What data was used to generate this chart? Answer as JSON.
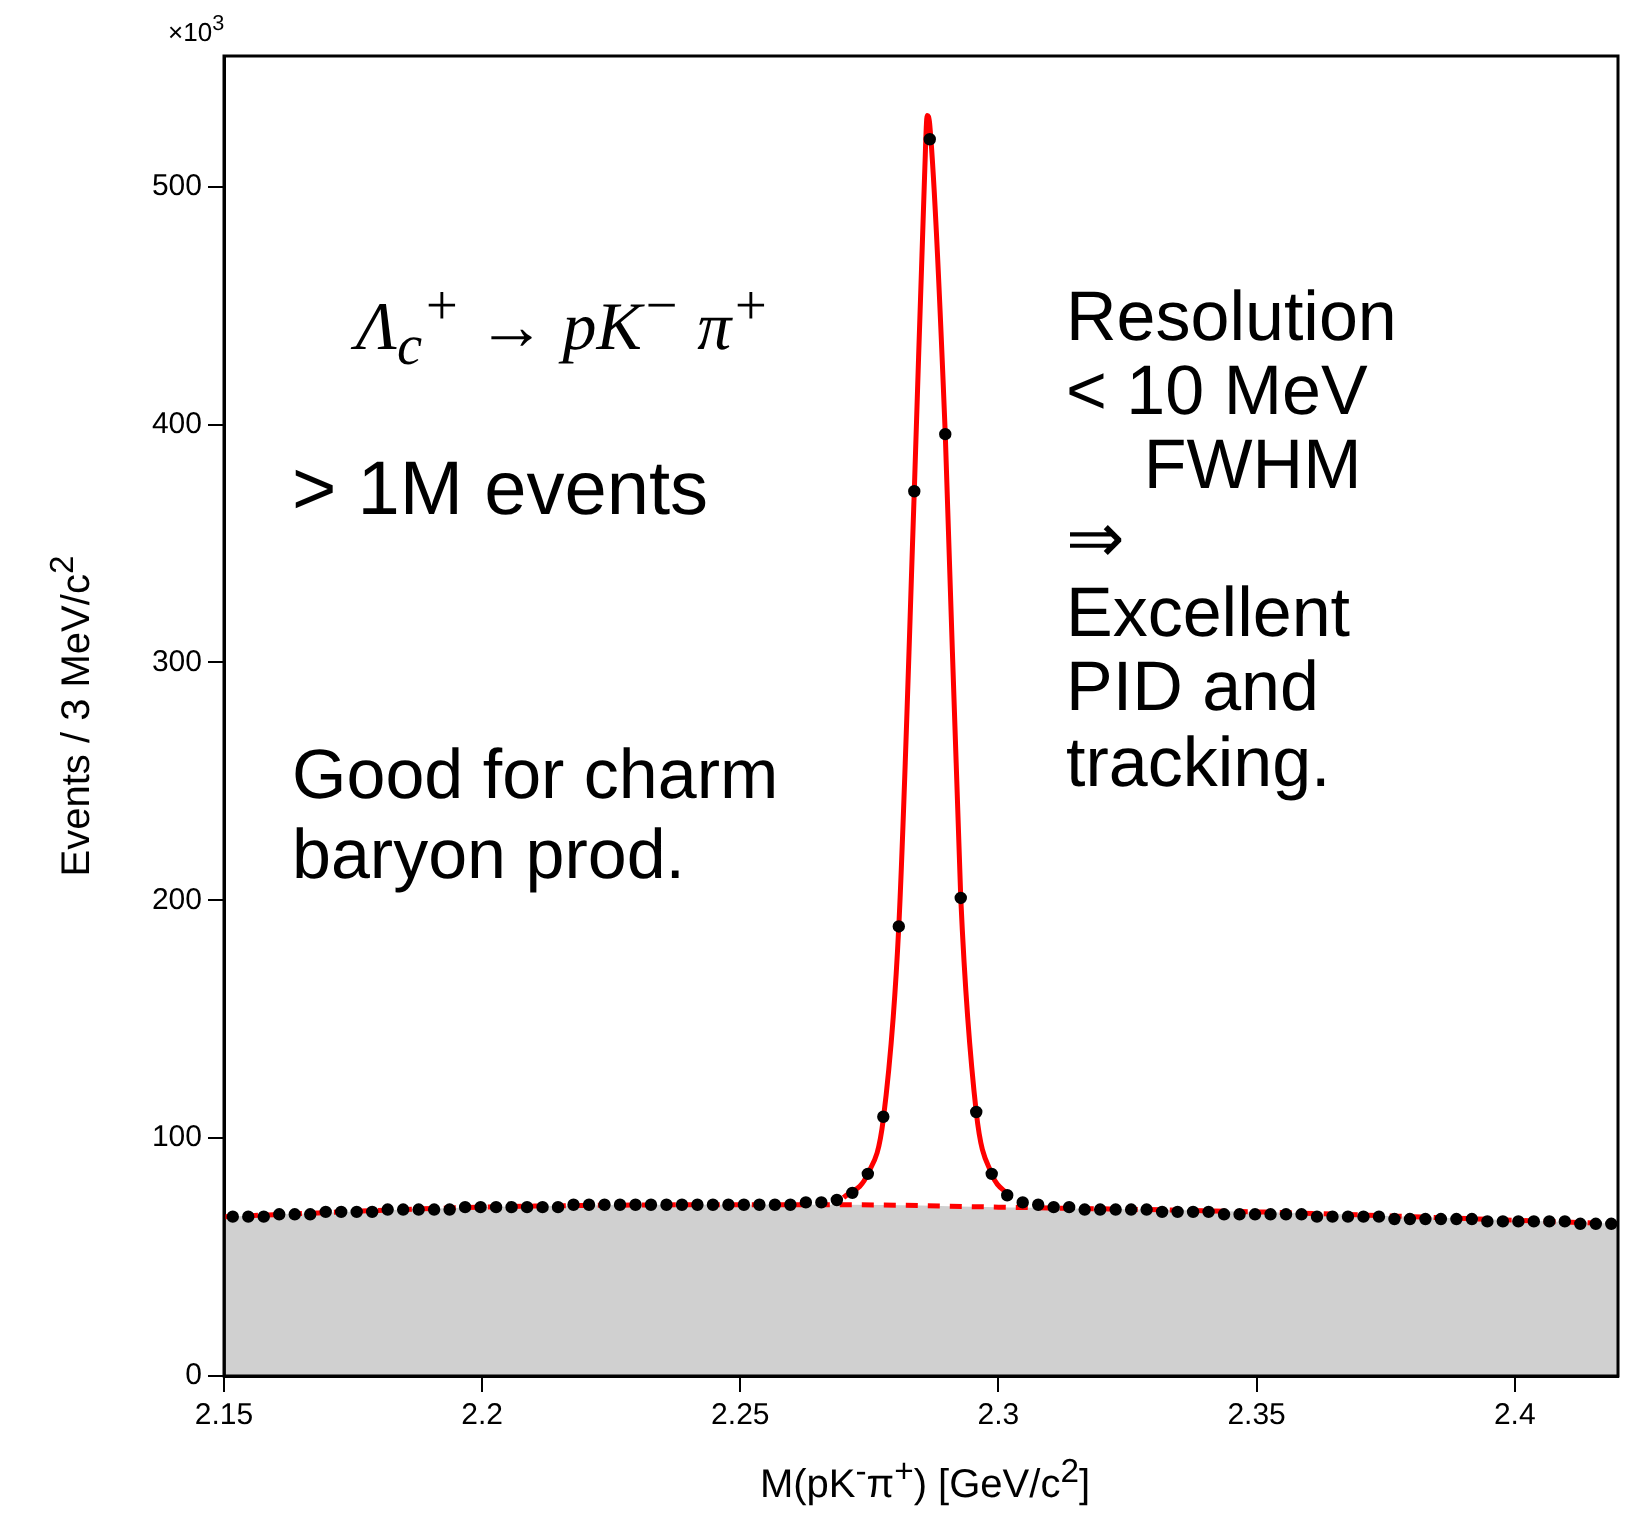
{
  "chart_data": {
    "type": "scatter",
    "xlabel": "M(pK$^{-}$π$^{+}$) [GeV/c$^{2}$]",
    "ylabel": "Events / 3 MeV/c$^{2}$",
    "annotations": [
      "×10$^{3}$",
      "Λ$_{c}$$^{+}$ → pK$^{−}$ π$^{+}$",
      "> 1M events",
      "Good for charm\nbaryon prod.",
      "Resolution\n< 10 MeV\n    FWHM\n⇒\nExcellent\nPID and\ntracking."
    ],
    "xlim": [
      2.15,
      2.42
    ],
    "xticks": [
      2.15,
      2.2,
      2.25,
      2.3,
      2.35,
      2.4
    ],
    "ylim": [
      0,
      555
    ],
    "yticks": [
      0,
      100,
      200,
      300,
      400,
      500
    ],
    "grid": false,
    "legend": false,
    "series": [
      {
        "type": "area",
        "color": "#ff0000",
        "line_style": "dashed",
        "marker": "none",
        "x": [
          2.15,
          2.2,
          2.25,
          2.27,
          2.3,
          2.35,
          2.42
        ],
        "values": [
          67,
          71,
          72,
          72,
          71,
          69,
          64
        ]
      },
      {
        "type": "line",
        "color": "#ff0000",
        "line_style": "solid",
        "marker": "none",
        "x": [
          2.27,
          2.2747,
          2.2777,
          2.2807,
          2.2837,
          2.2857,
          2.2862,
          2.2867,
          2.2897,
          2.2927,
          2.2957,
          2.2987,
          2.302
        ],
        "values": [
          75,
          85,
          108,
          189,
          372,
          505,
          530,
          526,
          396,
          201,
          111,
          85,
          76
        ]
      },
      {
        "color": "#000000",
        "marker": "circle",
        "x": [
          2.1517,
          2.1547,
          2.1577,
          2.1607,
          2.1637,
          2.1667,
          2.1697,
          2.1727,
          2.1757,
          2.1787,
          2.1817,
          2.1847,
          2.1877,
          2.1907,
          2.1937,
          2.1967,
          2.1997,
          2.2027,
          2.2057,
          2.2087,
          2.2117,
          2.2147,
          2.2177,
          2.2207,
          2.2237,
          2.2267,
          2.2297,
          2.2327,
          2.2357,
          2.2387,
          2.2417,
          2.2447,
          2.2477,
          2.2507,
          2.2537,
          2.2567,
          2.2597,
          2.2627,
          2.2657,
          2.2687,
          2.2717,
          2.2747,
          2.2777,
          2.2807,
          2.2837,
          2.2867,
          2.2897,
          2.2927,
          2.2957,
          2.2987,
          2.3017,
          2.3047,
          2.3077,
          2.3107,
          2.3137,
          2.3167,
          2.3197,
          2.3227,
          2.3257,
          2.3287,
          2.3317,
          2.3347,
          2.3377,
          2.3407,
          2.3437,
          2.3467,
          2.3497,
          2.3527,
          2.3557,
          2.3587,
          2.3617,
          2.3647,
          2.3677,
          2.3707,
          2.3737,
          2.3767,
          2.3797,
          2.3827,
          2.3857,
          2.3887,
          2.3917,
          2.3947,
          2.3977,
          2.4007,
          2.4037,
          2.4067,
          2.4097,
          2.4127,
          2.4157,
          2.4187
        ],
        "values": [
          67,
          67,
          67,
          68,
          68,
          68,
          69,
          69,
          69,
          69,
          70,
          70,
          70,
          70,
          70,
          71,
          71,
          71,
          71,
          71,
          71,
          71,
          72,
          72,
          72,
          72,
          72,
          72,
          72,
          72,
          72,
          72,
          72,
          72,
          72,
          72,
          72,
          73,
          73,
          74,
          77,
          85,
          109,
          189,
          372,
          520,
          396,
          201,
          111,
          85,
          76,
          73,
          72,
          71,
          71,
          70,
          70,
          70,
          70,
          70,
          69,
          69,
          69,
          69,
          68,
          68,
          68,
          68,
          68,
          68,
          67,
          67,
          67,
          67,
          67,
          66,
          66,
          66,
          66,
          66,
          66,
          65,
          65,
          65,
          65,
          65,
          65,
          64,
          64,
          64
        ]
      }
    ]
  }
}
